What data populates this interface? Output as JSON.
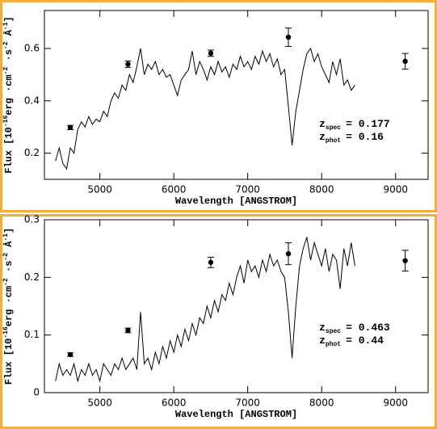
{
  "chart_data": [
    {
      "type": "line",
      "xlabel": "Wavelength [ANGSTROM]",
      "ylabel": [
        {
          "text": "Flux [10",
          "sup": false
        },
        {
          "text": "-16",
          "sup": true
        },
        {
          "text": "erg ·cm",
          "sup": false
        },
        {
          "text": "-2",
          "sup": true
        },
        {
          "text": " ·s",
          "sup": false
        },
        {
          "text": "-2",
          "sup": true
        },
        {
          "text": " Å",
          "sup": false
        },
        {
          "text": "-1",
          "sup": true
        },
        {
          "text": "]",
          "sup": false
        }
      ],
      "xlim": [
        4250,
        9440
      ],
      "ylim": [
        0.1,
        0.745
      ],
      "xticks": [
        5000,
        6000,
        7000,
        8000,
        9000
      ],
      "yticks": [
        0.2,
        0.4,
        0.6
      ],
      "annotations": [
        {
          "symbol": "z",
          "sub": "spec",
          "text": "= 0.177"
        },
        {
          "symbol": "z",
          "sub": "phot",
          "text": "= 0.16"
        }
      ],
      "series": [
        {
          "style": "line",
          "color": "#000000",
          "x": [
            4400,
            4450,
            4500,
            4550,
            4600,
            4650,
            4700,
            4750,
            4800,
            4850,
            4900,
            4950,
            5000,
            5050,
            5100,
            5150,
            5200,
            5250,
            5300,
            5350,
            5400,
            5450,
            5500,
            5550,
            5600,
            5650,
            5700,
            5750,
            5800,
            5850,
            5900,
            5950,
            6000,
            6050,
            6100,
            6150,
            6200,
            6250,
            6300,
            6350,
            6400,
            6450,
            6500,
            6550,
            6600,
            6650,
            6700,
            6750,
            6800,
            6850,
            6900,
            6950,
            7000,
            7050,
            7100,
            7150,
            7200,
            7250,
            7300,
            7350,
            7400,
            7450,
            7500,
            7550,
            7600,
            7650,
            7700,
            7750,
            7800,
            7850,
            7900,
            7950,
            8000,
            8050,
            8100,
            8150,
            8200,
            8250,
            8300,
            8350,
            8400,
            8450
          ],
          "values": [
            0.17,
            0.22,
            0.16,
            0.14,
            0.22,
            0.2,
            0.29,
            0.32,
            0.3,
            0.34,
            0.31,
            0.33,
            0.32,
            0.36,
            0.34,
            0.4,
            0.43,
            0.41,
            0.46,
            0.44,
            0.5,
            0.47,
            0.53,
            0.6,
            0.5,
            0.54,
            0.52,
            0.55,
            0.5,
            0.52,
            0.49,
            0.5,
            0.46,
            0.42,
            0.48,
            0.5,
            0.52,
            0.59,
            0.5,
            0.55,
            0.52,
            0.48,
            0.53,
            0.5,
            0.55,
            0.51,
            0.53,
            0.49,
            0.54,
            0.52,
            0.57,
            0.53,
            0.55,
            0.52,
            0.57,
            0.54,
            0.59,
            0.55,
            0.58,
            0.53,
            0.56,
            0.5,
            0.52,
            0.38,
            0.23,
            0.36,
            0.44,
            0.52,
            0.58,
            0.6,
            0.55,
            0.58,
            0.53,
            0.5,
            0.47,
            0.55,
            0.5,
            0.56,
            0.46,
            0.48,
            0.44,
            0.46
          ]
        },
        {
          "style": "errorbar",
          "color": "#000000",
          "x": [
            4600,
            5380,
            6500,
            7550,
            9130
          ],
          "values": [
            0.298,
            0.54,
            0.582,
            0.643,
            0.551
          ],
          "errors": [
            0.008,
            0.012,
            0.012,
            0.035,
            0.03
          ]
        }
      ]
    },
    {
      "type": "line",
      "xlabel": "Wavelength [ANGSTROM]",
      "ylabel": [
        {
          "text": "Flux [10",
          "sup": false
        },
        {
          "text": "-16",
          "sup": true
        },
        {
          "text": "erg ·cm",
          "sup": false
        },
        {
          "text": "-2",
          "sup": true
        },
        {
          "text": " ·s",
          "sup": false
        },
        {
          "text": "-2",
          "sup": true
        },
        {
          "text": " Å",
          "sup": false
        },
        {
          "text": "-1",
          "sup": true
        },
        {
          "text": "]",
          "sup": false
        }
      ],
      "xlim": [
        4250,
        9440
      ],
      "ylim": [
        0,
        0.3
      ],
      "xticks": [
        5000,
        6000,
        7000,
        8000,
        9000
      ],
      "yticks": [
        0,
        0.1,
        0.2,
        0.3
      ],
      "annotations": [
        {
          "symbol": "z",
          "sub": "spec",
          "text": "= 0.463"
        },
        {
          "symbol": "z",
          "sub": "phot",
          "text": "= 0.44"
        }
      ],
      "series": [
        {
          "style": "line",
          "color": "#000000",
          "x": [
            4400,
            4450,
            4500,
            4550,
            4600,
            4650,
            4700,
            4750,
            4800,
            4850,
            4900,
            4950,
            5000,
            5050,
            5100,
            5150,
            5200,
            5250,
            5300,
            5350,
            5400,
            5450,
            5500,
            5550,
            5600,
            5650,
            5700,
            5750,
            5800,
            5850,
            5900,
            5950,
            6000,
            6050,
            6100,
            6150,
            6200,
            6250,
            6300,
            6350,
            6400,
            6450,
            6500,
            6550,
            6600,
            6650,
            6700,
            6750,
            6800,
            6850,
            6900,
            6950,
            7000,
            7050,
            7100,
            7150,
            7200,
            7250,
            7300,
            7350,
            7400,
            7450,
            7500,
            7550,
            7600,
            7650,
            7700,
            7750,
            7800,
            7850,
            7900,
            7950,
            8000,
            8050,
            8100,
            8150,
            8200,
            8250,
            8300,
            8350,
            8400,
            8450
          ],
          "values": [
            0.02,
            0.05,
            0.03,
            0.04,
            0.03,
            0.05,
            0.02,
            0.04,
            0.03,
            0.05,
            0.03,
            0.04,
            0.02,
            0.05,
            0.04,
            0.03,
            0.05,
            0.04,
            0.06,
            0.04,
            0.05,
            0.06,
            0.04,
            0.14,
            0.05,
            0.06,
            0.04,
            0.07,
            0.05,
            0.08,
            0.06,
            0.09,
            0.07,
            0.1,
            0.08,
            0.11,
            0.09,
            0.12,
            0.1,
            0.13,
            0.12,
            0.15,
            0.13,
            0.16,
            0.14,
            0.17,
            0.16,
            0.19,
            0.17,
            0.2,
            0.22,
            0.19,
            0.23,
            0.21,
            0.22,
            0.2,
            0.23,
            0.21,
            0.24,
            0.22,
            0.23,
            0.21,
            0.2,
            0.14,
            0.06,
            0.15,
            0.22,
            0.25,
            0.27,
            0.23,
            0.26,
            0.24,
            0.22,
            0.25,
            0.21,
            0.24,
            0.23,
            0.18,
            0.25,
            0.22,
            0.26,
            0.22
          ]
        },
        {
          "style": "errorbar",
          "color": "#000000",
          "x": [
            4600,
            5380,
            6500,
            7550,
            9130
          ],
          "values": [
            0.066,
            0.108,
            0.226,
            0.241,
            0.229
          ],
          "errors": [
            0.003,
            0.004,
            0.009,
            0.019,
            0.018
          ]
        }
      ]
    }
  ]
}
